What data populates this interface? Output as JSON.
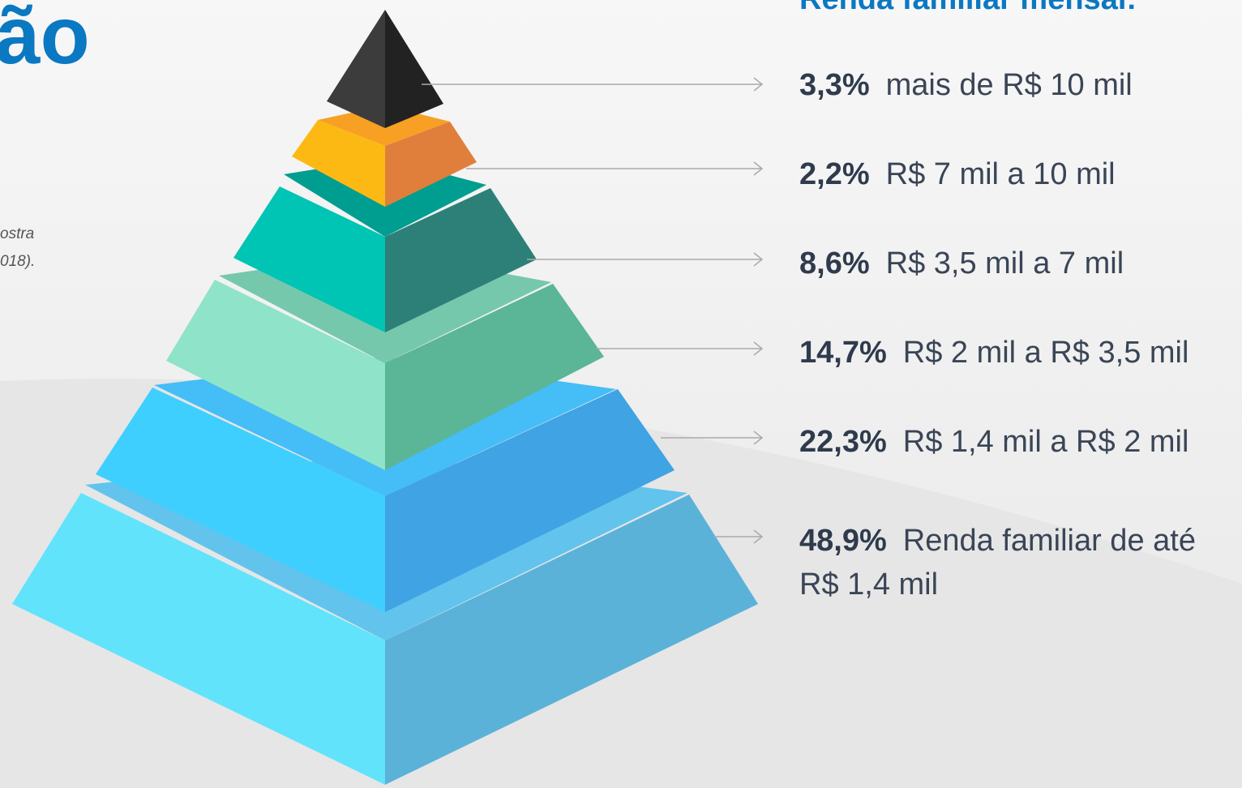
{
  "title": "ão",
  "note": [
    "ostra",
    "018)."
  ],
  "heading": "Renda familiar mensal:",
  "items": [
    {
      "percent": "3,3%",
      "label": "mais de R$ 10 mil"
    },
    {
      "percent": "2,2%",
      "label": "R$ 7 mil a 10 mil"
    },
    {
      "percent": "8,6%",
      "label": "R$ 3,5 mil a 7 mil"
    },
    {
      "percent": "14,7%",
      "label": "R$ 2 mil a R$ 3,5 mil"
    },
    {
      "percent": "22,3%",
      "label": "R$ 1,4 mil a R$ 2 mil"
    },
    {
      "percent": "48,9%",
      "label": "Renda familiar de até R$ 1,4 mil"
    }
  ]
}
